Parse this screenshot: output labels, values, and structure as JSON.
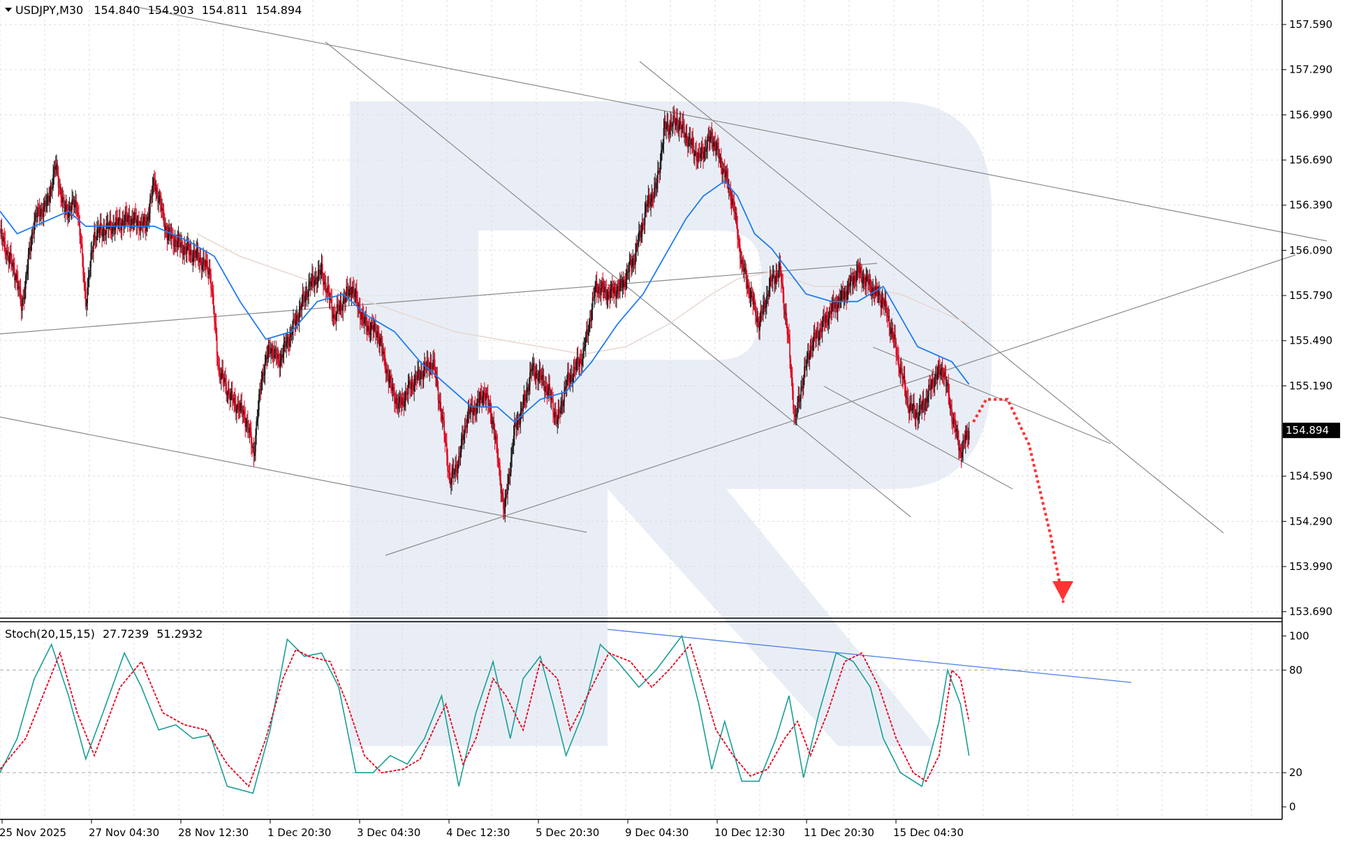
{
  "header": {
    "symbol": "USDJPY,M30",
    "open": "154.840",
    "high": "154.903",
    "low": "154.811",
    "close": "154.894"
  },
  "stoch_header": {
    "name": "Stoch(20,15,15)",
    "main": "27.7239",
    "signal": "51.2932"
  },
  "colors": {
    "bull_candle": "#1a1a1a",
    "bear_candle": "#e0001b",
    "ma_fast": "#1e7bf0",
    "ma_slow": "#e8d6d0",
    "stoch_main": "#1a9e96",
    "stoch_signal": "#e8001c",
    "forecast_arrow": "#ff3333",
    "trendline": "#8a8a8a",
    "stoch_trendline": "#4a7de8",
    "grid": "#dcdcdc",
    "watermark": "#e9eef6",
    "price_tag_bg": "#000000"
  },
  "chart_data": [
    {
      "type": "candlestick",
      "symbol": "USDJPY",
      "timeframe": "M30",
      "last_price": "154.894",
      "x_tick_labels": [
        "25 Nov 2025",
        "27 Nov 04:30",
        "28 Nov 12:30",
        "1 Dec 20:30",
        "3 Dec 04:30",
        "4 Dec 12:30",
        "5 Dec 20:30",
        "9 Dec 04:30",
        "10 Dec 12:30",
        "11 Dec 20:30",
        "15 Dec 04:30"
      ],
      "y_tick_labels": [
        "157.590",
        "157.290",
        "156.990",
        "156.690",
        "156.390",
        "156.090",
        "155.790",
        "155.490",
        "155.190",
        "154.590",
        "154.290",
        "153.990",
        "153.690"
      ],
      "ylim": [
        153.67,
        157.66
      ],
      "price_path": [
        [
          0,
          156.2
        ],
        [
          20,
          155.9
        ],
        [
          25,
          155.7
        ],
        [
          40,
          156.3
        ],
        [
          55,
          156.4
        ],
        [
          65,
          156.65
        ],
        [
          75,
          156.35
        ],
        [
          90,
          156.4
        ],
        [
          100,
          155.75
        ],
        [
          110,
          156.2
        ],
        [
          130,
          156.25
        ],
        [
          150,
          156.3
        ],
        [
          170,
          156.25
        ],
        [
          180,
          156.55
        ],
        [
          195,
          156.2
        ],
        [
          215,
          156.1
        ],
        [
          230,
          156.05
        ],
        [
          245,
          155.95
        ],
        [
          255,
          155.3
        ],
        [
          270,
          155.1
        ],
        [
          285,
          155.0
        ],
        [
          296,
          154.75
        ],
        [
          305,
          155.25
        ],
        [
          315,
          155.45
        ],
        [
          325,
          155.35
        ],
        [
          340,
          155.55
        ],
        [
          360,
          155.85
        ],
        [
          375,
          155.95
        ],
        [
          390,
          155.65
        ],
        [
          410,
          155.85
        ],
        [
          425,
          155.6
        ],
        [
          440,
          155.55
        ],
        [
          455,
          155.2
        ],
        [
          465,
          155.05
        ],
        [
          480,
          155.2
        ],
        [
          495,
          155.3
        ],
        [
          505,
          155.35
        ],
        [
          515,
          155.0
        ],
        [
          525,
          154.55
        ],
        [
          535,
          154.7
        ],
        [
          545,
          155.0
        ],
        [
          555,
          155.05
        ],
        [
          565,
          155.15
        ],
        [
          575,
          154.95
        ],
        [
          588,
          154.35
        ],
        [
          600,
          154.9
        ],
        [
          610,
          155.05
        ],
        [
          620,
          155.3
        ],
        [
          630,
          155.25
        ],
        [
          640,
          155.15
        ],
        [
          650,
          154.95
        ],
        [
          660,
          155.2
        ],
        [
          680,
          155.4
        ],
        [
          695,
          155.85
        ],
        [
          710,
          155.8
        ],
        [
          725,
          155.85
        ],
        [
          740,
          156.05
        ],
        [
          755,
          156.4
        ],
        [
          765,
          156.5
        ],
        [
          775,
          156.9
        ],
        [
          790,
          156.95
        ],
        [
          800,
          156.85
        ],
        [
          815,
          156.7
        ],
        [
          830,
          156.85
        ],
        [
          845,
          156.6
        ],
        [
          855,
          156.4
        ],
        [
          865,
          156.0
        ],
        [
          875,
          155.8
        ],
        [
          885,
          155.6
        ],
        [
          900,
          155.9
        ],
        [
          910,
          155.95
        ],
        [
          920,
          155.45
        ],
        [
          927,
          154.95
        ],
        [
          935,
          155.2
        ],
        [
          945,
          155.45
        ],
        [
          955,
          155.55
        ],
        [
          970,
          155.7
        ],
        [
          985,
          155.8
        ],
        [
          1000,
          155.95
        ],
        [
          1015,
          155.85
        ],
        [
          1030,
          155.75
        ],
        [
          1040,
          155.55
        ],
        [
          1050,
          155.3
        ],
        [
          1060,
          155.05
        ],
        [
          1070,
          155.0
        ],
        [
          1080,
          155.1
        ],
        [
          1090,
          155.25
        ],
        [
          1100,
          155.3
        ],
        [
          1110,
          155.0
        ],
        [
          1120,
          154.75
        ],
        [
          1130,
          154.89
        ]
      ],
      "ma_fast_path": [
        [
          0,
          156.35
        ],
        [
          20,
          156.2
        ],
        [
          40,
          156.25
        ],
        [
          60,
          156.3
        ],
        [
          80,
          156.35
        ],
        [
          100,
          156.25
        ],
        [
          140,
          156.25
        ],
        [
          180,
          156.25
        ],
        [
          220,
          156.15
        ],
        [
          250,
          156.05
        ],
        [
          280,
          155.75
        ],
        [
          310,
          155.5
        ],
        [
          340,
          155.55
        ],
        [
          370,
          155.75
        ],
        [
          400,
          155.8
        ],
        [
          430,
          155.65
        ],
        [
          460,
          155.55
        ],
        [
          490,
          155.35
        ],
        [
          520,
          155.2
        ],
        [
          550,
          155.05
        ],
        [
          580,
          155.05
        ],
        [
          600,
          154.95
        ],
        [
          630,
          155.1
        ],
        [
          660,
          155.15
        ],
        [
          690,
          155.35
        ],
        [
          720,
          155.6
        ],
        [
          750,
          155.8
        ],
        [
          780,
          156.1
        ],
        [
          800,
          156.3
        ],
        [
          820,
          156.45
        ],
        [
          845,
          156.55
        ],
        [
          860,
          156.45
        ],
        [
          880,
          156.2
        ],
        [
          900,
          156.1
        ],
        [
          920,
          155.95
        ],
        [
          940,
          155.8
        ],
        [
          970,
          155.75
        ],
        [
          1000,
          155.75
        ],
        [
          1030,
          155.85
        ],
        [
          1050,
          155.65
        ],
        [
          1070,
          155.45
        ],
        [
          1090,
          155.4
        ],
        [
          1110,
          155.35
        ],
        [
          1130,
          155.2
        ]
      ],
      "ma_slow_path": [
        [
          230,
          156.2
        ],
        [
          280,
          156.05
        ],
        [
          330,
          155.95
        ],
        [
          380,
          155.85
        ],
        [
          430,
          155.75
        ],
        [
          480,
          155.65
        ],
        [
          530,
          155.55
        ],
        [
          580,
          155.5
        ],
        [
          630,
          155.45
        ],
        [
          680,
          155.4
        ],
        [
          730,
          155.45
        ],
        [
          780,
          155.6
        ],
        [
          830,
          155.8
        ],
        [
          860,
          155.9
        ],
        [
          900,
          155.95
        ],
        [
          950,
          155.85
        ],
        [
          1000,
          155.85
        ],
        [
          1050,
          155.8
        ],
        [
          1090,
          155.7
        ],
        [
          1130,
          155.6
        ]
      ],
      "forecast_path": [
        [
          1135,
          154.95
        ],
        [
          1150,
          155.1
        ],
        [
          1175,
          155.1
        ],
        [
          1200,
          154.8
        ],
        [
          1225,
          154.2
        ],
        [
          1240,
          153.75
        ]
      ]
    },
    {
      "type": "line",
      "indicator": "Stochastic",
      "title": "Stoch(20,15,15)",
      "ylim": [
        -2,
        103
      ],
      "y_tick_labels": [
        "100",
        "80",
        "20",
        "0"
      ],
      "levels": [
        80,
        20
      ],
      "series": [
        {
          "name": "27.7239",
          "values": [
            [
              0,
              20
            ],
            [
              20,
              40
            ],
            [
              40,
              75
            ],
            [
              60,
              95
            ],
            [
              80,
              65
            ],
            [
              100,
              28
            ],
            [
              120,
              55
            ],
            [
              145,
              90
            ],
            [
              165,
              70
            ],
            [
              185,
              45
            ],
            [
              205,
              48
            ],
            [
              225,
              40
            ],
            [
              245,
              42
            ],
            [
              265,
              12
            ],
            [
              295,
              8
            ],
            [
              315,
              45
            ],
            [
              335,
              98
            ],
            [
              355,
              88
            ],
            [
              375,
              90
            ],
            [
              395,
              70
            ],
            [
              415,
              20
            ],
            [
              435,
              20
            ],
            [
              455,
              30
            ],
            [
              475,
              25
            ],
            [
              495,
              40
            ],
            [
              515,
              65
            ],
            [
              535,
              12
            ],
            [
              555,
              55
            ],
            [
              575,
              85
            ],
            [
              595,
              40
            ],
            [
              610,
              75
            ],
            [
              630,
              88
            ],
            [
              645,
              60
            ],
            [
              660,
              30
            ],
            [
              680,
              55
            ],
            [
              700,
              95
            ],
            [
              720,
              85
            ],
            [
              745,
              70
            ],
            [
              765,
              80
            ],
            [
              795,
              100
            ],
            [
              815,
              60
            ],
            [
              830,
              22
            ],
            [
              845,
              50
            ],
            [
              865,
              15
            ],
            [
              885,
              15
            ],
            [
              905,
              40
            ],
            [
              920,
              65
            ],
            [
              937,
              17
            ],
            [
              955,
              55
            ],
            [
              975,
              90
            ],
            [
              995,
              85
            ],
            [
              1015,
              70
            ],
            [
              1030,
              40
            ],
            [
              1050,
              20
            ],
            [
              1075,
              12
            ],
            [
              1095,
              50
            ],
            [
              1105,
              80
            ],
            [
              1120,
              60
            ],
            [
              1130,
              30
            ]
          ]
        },
        {
          "name": "51.2932",
          "values": [
            [
              0,
              22
            ],
            [
              30,
              40
            ],
            [
              70,
              90
            ],
            [
              90,
              55
            ],
            [
              110,
              30
            ],
            [
              140,
              70
            ],
            [
              165,
              85
            ],
            [
              190,
              55
            ],
            [
              215,
              48
            ],
            [
              240,
              45
            ],
            [
              265,
              25
            ],
            [
              290,
              12
            ],
            [
              310,
              40
            ],
            [
              330,
              75
            ],
            [
              345,
              92
            ],
            [
              360,
              88
            ],
            [
              385,
              85
            ],
            [
              405,
              60
            ],
            [
              425,
              30
            ],
            [
              445,
              20
            ],
            [
              470,
              22
            ],
            [
              490,
              28
            ],
            [
              510,
              50
            ],
            [
              520,
              60
            ],
            [
              540,
              25
            ],
            [
              555,
              40
            ],
            [
              575,
              75
            ],
            [
              590,
              65
            ],
            [
              610,
              45
            ],
            [
              630,
              85
            ],
            [
              650,
              75
            ],
            [
              665,
              45
            ],
            [
              690,
              70
            ],
            [
              710,
              90
            ],
            [
              735,
              85
            ],
            [
              760,
              70
            ],
            [
              780,
              80
            ],
            [
              805,
              95
            ],
            [
              820,
              70
            ],
            [
              835,
              45
            ],
            [
              855,
              30
            ],
            [
              875,
              18
            ],
            [
              895,
              22
            ],
            [
              915,
              40
            ],
            [
              930,
              50
            ],
            [
              945,
              30
            ],
            [
              965,
              55
            ],
            [
              985,
              85
            ],
            [
              1005,
              90
            ],
            [
              1025,
              70
            ],
            [
              1045,
              40
            ],
            [
              1065,
              20
            ],
            [
              1080,
              15
            ],
            [
              1095,
              30
            ],
            [
              1110,
              80
            ],
            [
              1120,
              75
            ],
            [
              1130,
              50
            ]
          ]
        }
      ]
    }
  ]
}
